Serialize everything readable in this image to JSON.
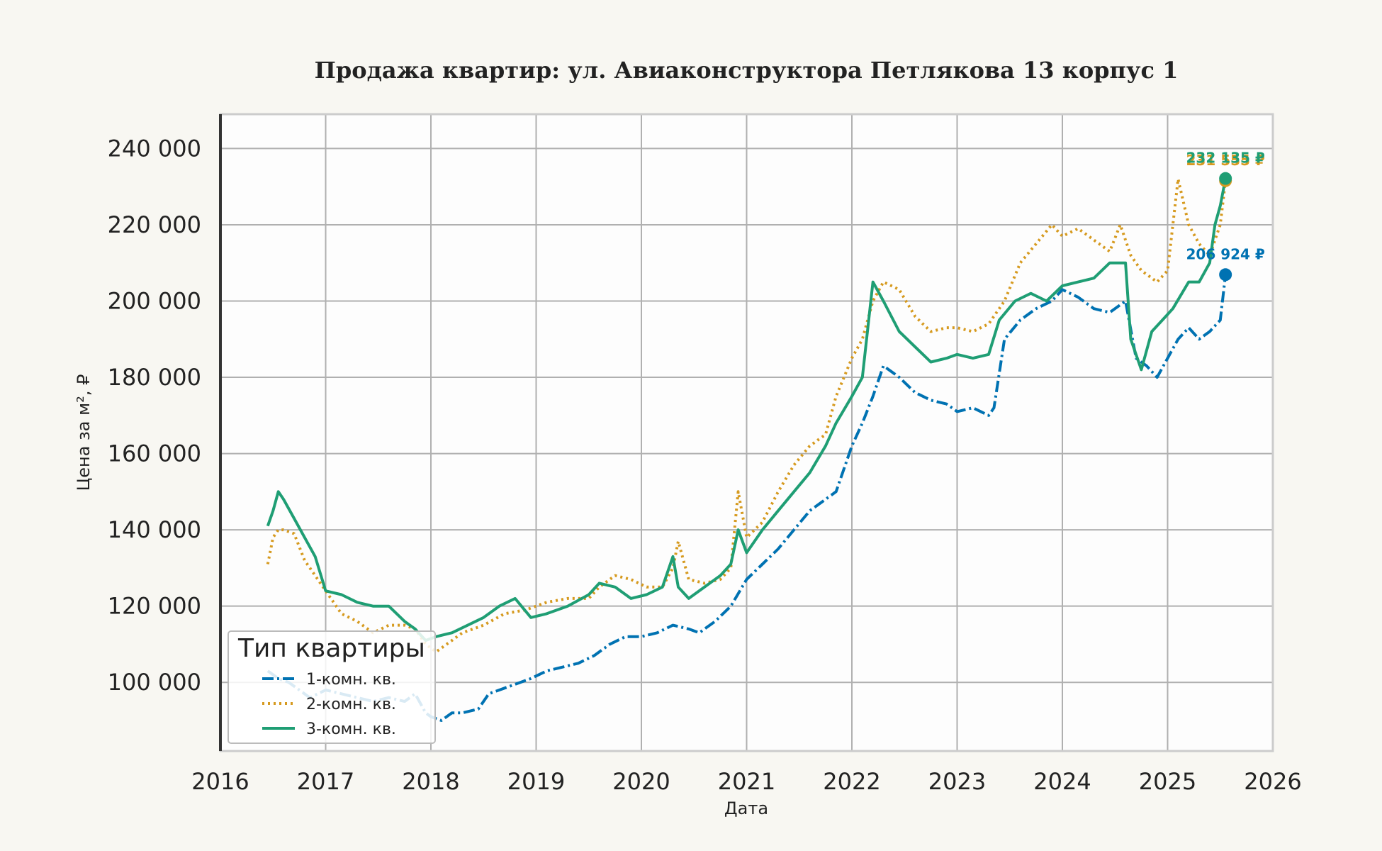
{
  "chart_data": {
    "type": "line",
    "title": "Продажа квартир: ул. Авиаконструктора Петлякова 13 корпус 1",
    "xlabel": "Дата",
    "ylabel": "Цена за м², ₽",
    "xlim": [
      2016,
      2026
    ],
    "ylim": [
      82000,
      249000
    ],
    "x_ticks": [
      2016,
      2017,
      2018,
      2019,
      2020,
      2021,
      2022,
      2023,
      2024,
      2025,
      2026
    ],
    "x_tick_labels": [
      "2016",
      "2017",
      "2018",
      "2019",
      "2020",
      "2021",
      "2022",
      "2023",
      "2024",
      "2025",
      "2026"
    ],
    "y_ticks": [
      100000,
      120000,
      140000,
      160000,
      180000,
      200000,
      220000,
      240000
    ],
    "y_tick_labels": [
      "100 000",
      "120 000",
      "140 000",
      "160 000",
      "180 000",
      "200 000",
      "220 000",
      "240 000"
    ],
    "grid": true,
    "legend": {
      "title": "Тип квартиры",
      "position": "lower-left"
    },
    "series": [
      {
        "name": "1-комн. кв.",
        "color": "#0072b2",
        "style": "dashdot",
        "x": [
          2016.45,
          2016.55,
          2016.65,
          2016.75,
          2016.85,
          2017.0,
          2017.15,
          2017.3,
          2017.45,
          2017.6,
          2017.75,
          2017.85,
          2017.95,
          2018.0,
          2018.1,
          2018.2,
          2018.3,
          2018.45,
          2018.55,
          2018.65,
          2018.75,
          2018.85,
          2018.95,
          2019.1,
          2019.25,
          2019.4,
          2019.55,
          2019.7,
          2019.85,
          2020.0,
          2020.15,
          2020.3,
          2020.45,
          2020.55,
          2020.7,
          2020.85,
          2021.0,
          2021.15,
          2021.3,
          2021.45,
          2021.6,
          2021.75,
          2021.85,
          2022.0,
          2022.1,
          2022.2,
          2022.3,
          2022.45,
          2022.6,
          2022.75,
          2022.9,
          2023.0,
          2023.15,
          2023.3,
          2023.35,
          2023.45,
          2023.6,
          2023.75,
          2023.9,
          2024.0,
          2024.15,
          2024.3,
          2024.45,
          2024.6,
          2024.7,
          2024.8,
          2024.9,
          2025.0,
          2025.1,
          2025.2,
          2025.3,
          2025.4,
          2025.5,
          2025.55
        ],
        "y": [
          103000,
          101000,
          100000,
          98000,
          96000,
          98000,
          97000,
          96000,
          95000,
          96000,
          95000,
          97000,
          92000,
          91000,
          90000,
          92000,
          92000,
          93000,
          97000,
          98000,
          99000,
          100000,
          101000,
          103000,
          104000,
          105000,
          107000,
          110000,
          112000,
          112000,
          113000,
          115000,
          114000,
          113000,
          116000,
          120000,
          127000,
          131000,
          135000,
          140000,
          145000,
          148000,
          150000,
          162000,
          168000,
          175000,
          183000,
          180000,
          176000,
          174000,
          173000,
          171000,
          172000,
          170000,
          172000,
          190000,
          195000,
          198000,
          200000,
          203000,
          201000,
          198000,
          197000,
          200000,
          185000,
          183000,
          180000,
          185000,
          190000,
          193000,
          190000,
          192000,
          195000,
          206924
        ]
      },
      {
        "name": "2-комн. кв.",
        "color": "#d69a1f",
        "style": "dotted",
        "x": [
          2016.45,
          2016.5,
          2016.55,
          2016.6,
          2016.7,
          2016.8,
          2016.9,
          2017.0,
          2017.15,
          2017.3,
          2017.45,
          2017.6,
          2017.75,
          2017.85,
          2017.95,
          2018.05,
          2018.15,
          2018.3,
          2018.5,
          2018.7,
          2018.9,
          2019.1,
          2019.3,
          2019.5,
          2019.6,
          2019.75,
          2019.9,
          2020.05,
          2020.2,
          2020.3,
          2020.35,
          2020.45,
          2020.6,
          2020.75,
          2020.85,
          2020.92,
          2021.0,
          2021.15,
          2021.3,
          2021.45,
          2021.6,
          2021.75,
          2021.85,
          2022.0,
          2022.1,
          2022.2,
          2022.3,
          2022.45,
          2022.6,
          2022.75,
          2022.9,
          2023.0,
          2023.15,
          2023.3,
          2023.45,
          2023.6,
          2023.75,
          2023.9,
          2024.0,
          2024.15,
          2024.3,
          2024.45,
          2024.55,
          2024.65,
          2024.75,
          2024.9,
          2025.0,
          2025.1,
          2025.2,
          2025.3,
          2025.4,
          2025.5,
          2025.55
        ],
        "y": [
          131000,
          138000,
          140000,
          140000,
          139000,
          132000,
          128000,
          124000,
          118000,
          116000,
          113000,
          115000,
          115000,
          114000,
          110000,
          108000,
          110000,
          113000,
          115000,
          118000,
          119000,
          121000,
          122000,
          122000,
          125000,
          128000,
          127000,
          125000,
          125000,
          130000,
          137000,
          127000,
          126000,
          127000,
          130000,
          150000,
          138000,
          142000,
          150000,
          157000,
          162000,
          165000,
          175000,
          185000,
          190000,
          200000,
          205000,
          203000,
          196000,
          192000,
          193000,
          193000,
          192000,
          194000,
          200000,
          210000,
          215000,
          220000,
          217000,
          219000,
          216000,
          213000,
          220000,
          212000,
          208000,
          205000,
          208000,
          232000,
          220000,
          215000,
          212000,
          220000,
          231555
        ]
      },
      {
        "name": "3-комн. кв.",
        "color": "#1f9e74",
        "style": "solid",
        "x": [
          2016.45,
          2016.5,
          2016.55,
          2016.6,
          2016.7,
          2016.8,
          2016.9,
          2017.0,
          2017.15,
          2017.3,
          2017.45,
          2017.6,
          2017.75,
          2017.85,
          2017.95,
          2018.05,
          2018.2,
          2018.35,
          2018.5,
          2018.65,
          2018.8,
          2018.95,
          2019.1,
          2019.3,
          2019.5,
          2019.6,
          2019.75,
          2019.9,
          2020.05,
          2020.2,
          2020.3,
          2020.35,
          2020.45,
          2020.6,
          2020.75,
          2020.85,
          2020.92,
          2021.0,
          2021.15,
          2021.3,
          2021.45,
          2021.6,
          2021.75,
          2021.85,
          2022.0,
          2022.1,
          2022.2,
          2022.3,
          2022.45,
          2022.6,
          2022.75,
          2022.9,
          2023.0,
          2023.15,
          2023.3,
          2023.4,
          2023.55,
          2023.7,
          2023.85,
          2024.0,
          2024.15,
          2024.3,
          2024.45,
          2024.6,
          2024.65,
          2024.75,
          2024.85,
          2024.95,
          2025.05,
          2025.2,
          2025.3,
          2025.4,
          2025.45,
          2025.5,
          2025.55
        ],
        "y": [
          141000,
          145000,
          150000,
          148000,
          143000,
          138000,
          133000,
          124000,
          123000,
          121000,
          120000,
          120000,
          116000,
          114000,
          111000,
          112000,
          113000,
          115000,
          117000,
          120000,
          122000,
          117000,
          118000,
          120000,
          123000,
          126000,
          125000,
          122000,
          123000,
          125000,
          133000,
          125000,
          122000,
          125000,
          128000,
          131000,
          140000,
          134000,
          140000,
          145000,
          150000,
          155000,
          162000,
          168000,
          175000,
          180000,
          205000,
          200000,
          192000,
          188000,
          184000,
          185000,
          186000,
          185000,
          186000,
          195000,
          200000,
          202000,
          200000,
          204000,
          205000,
          206000,
          210000,
          210000,
          190000,
          182000,
          192000,
          195000,
          198000,
          205000,
          205000,
          210000,
          220000,
          225000,
          232135
        ]
      }
    ],
    "end_labels": [
      {
        "series": "2-комн. кв.",
        "text": "231 555 ₽",
        "color": "#d69a1f"
      },
      {
        "series": "3-комн. кв.",
        "text": "232 135 ₽",
        "color": "#1f9e74"
      },
      {
        "series": "1-комн. кв.",
        "text": "206 924 ₽",
        "color": "#0072b2"
      }
    ]
  }
}
